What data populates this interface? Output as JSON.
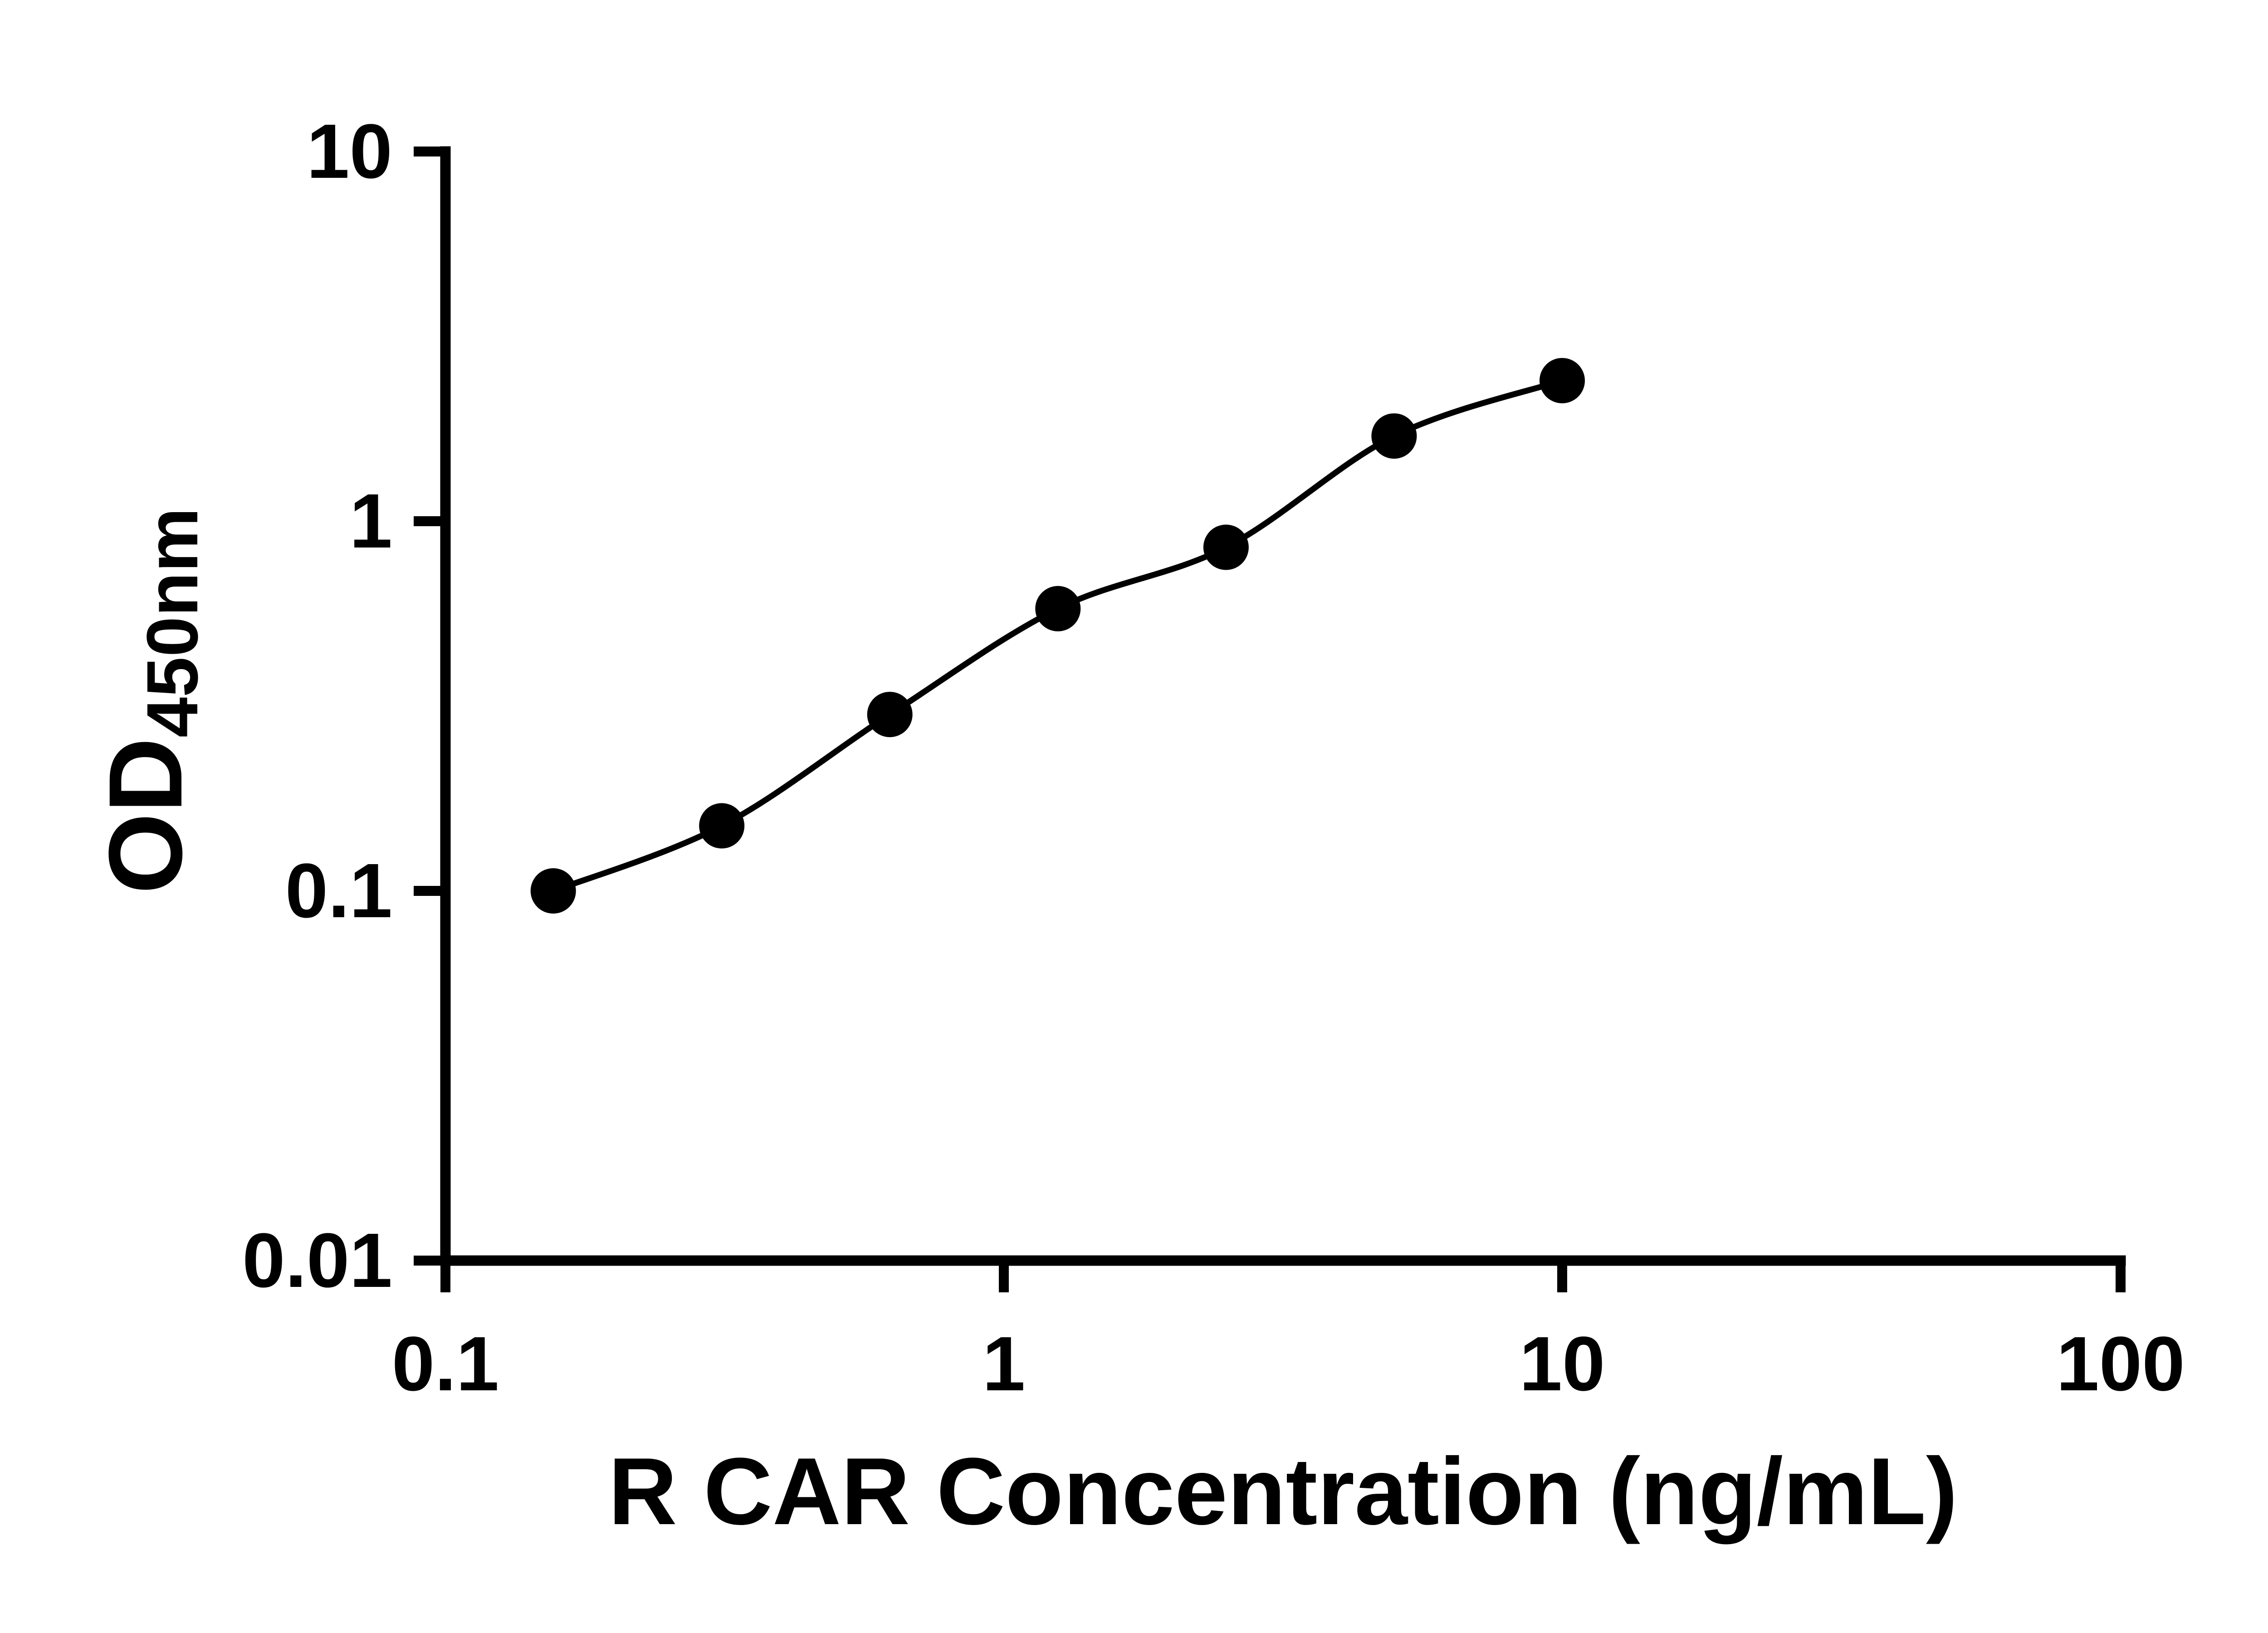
{
  "figure": {
    "background": "#ffffff"
  },
  "chart_data": {
    "type": "scatter",
    "title": "",
    "xlabel": "R CAR Concentration (ng/mL)",
    "ylabel_main": "OD",
    "ylabel_subscript": "450nm",
    "x_scale": "log",
    "y_scale": "log",
    "xlim": [
      0.1,
      100
    ],
    "ylim": [
      0.01,
      10
    ],
    "x_ticks": [
      0.1,
      1,
      10,
      100
    ],
    "x_tick_labels": [
      "0.1",
      "1",
      "10",
      "100"
    ],
    "y_ticks": [
      0.01,
      0.1,
      1,
      10
    ],
    "y_tick_labels": [
      "0.01",
      "0.1",
      "1",
      "10"
    ],
    "grid": false,
    "legend": false,
    "axis_color": "#000000",
    "text_color": "#000000",
    "series": [
      {
        "x": [
          0.156,
          0.3125,
          0.625,
          1.25,
          2.5,
          5,
          10
        ],
        "y": [
          0.1,
          0.15,
          0.3,
          0.58,
          0.85,
          1.7,
          2.4
        ],
        "marker": "filled-circle",
        "marker_color": "#000000",
        "line": "smooth",
        "line_color": "#000000"
      }
    ]
  }
}
